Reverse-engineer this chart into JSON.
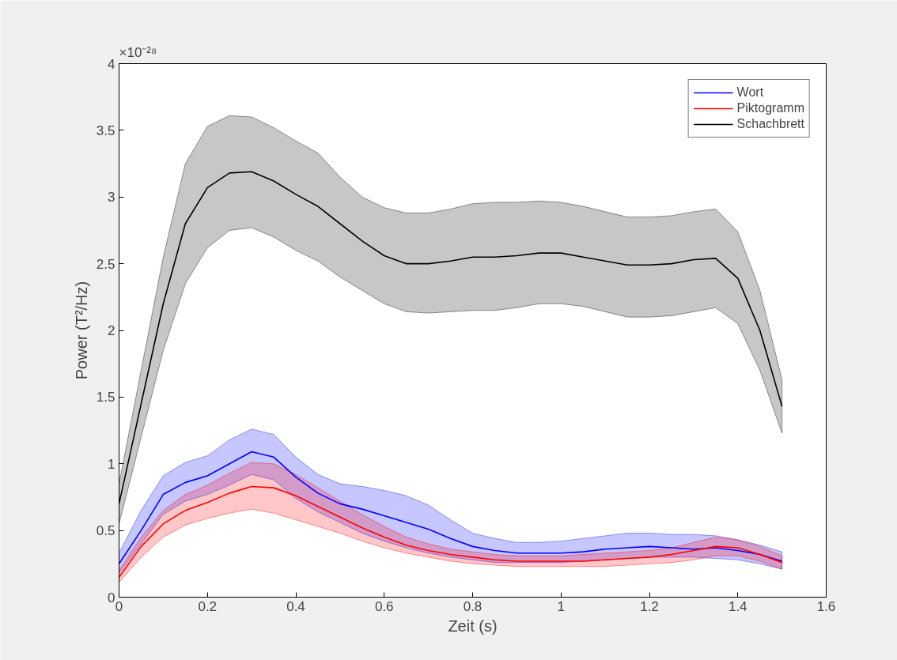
{
  "chart_data": {
    "type": "line",
    "xlabel": "Zeit (s)",
    "ylabel": "Power (T²/Hz)",
    "annotations": [
      "×10⁻²⁸"
    ],
    "x": [
      0,
      0.05,
      0.1,
      0.15,
      0.2,
      0.25,
      0.3,
      0.35,
      0.4,
      0.45,
      0.5,
      0.55,
      0.6,
      0.65,
      0.7,
      0.75,
      0.8,
      0.85,
      0.9,
      0.95,
      1.0,
      1.05,
      1.1,
      1.15,
      1.2,
      1.25,
      1.3,
      1.35,
      1.4,
      1.45,
      1.5
    ],
    "xlim": [
      0,
      1.6
    ],
    "xticks": [
      0,
      0.2,
      0.4,
      0.6,
      0.8,
      1,
      1.2,
      1.4,
      1.6
    ],
    "ylim": [
      0,
      4
    ],
    "yticks": [
      0,
      0.5,
      1,
      1.5,
      2,
      2.5,
      3,
      3.5,
      4
    ],
    "grid": false,
    "legend": "top right",
    "line_style": "solid",
    "marker": "none",
    "series": [
      {
        "name": "Wort",
        "color": "#0000ff",
        "values": [
          0.25,
          0.5,
          0.77,
          0.86,
          0.91,
          1.0,
          1.09,
          1.05,
          0.9,
          0.78,
          0.7,
          0.66,
          0.61,
          0.56,
          0.51,
          0.44,
          0.38,
          0.35,
          0.33,
          0.33,
          0.33,
          0.34,
          0.36,
          0.37,
          0.38,
          0.37,
          0.36,
          0.37,
          0.35,
          0.32,
          0.27
        ],
        "upper": [
          0.33,
          0.65,
          0.91,
          1.01,
          1.06,
          1.18,
          1.26,
          1.22,
          1.05,
          0.92,
          0.85,
          0.83,
          0.8,
          0.76,
          0.69,
          0.58,
          0.48,
          0.44,
          0.41,
          0.41,
          0.42,
          0.44,
          0.46,
          0.48,
          0.48,
          0.47,
          0.47,
          0.46,
          0.43,
          0.39,
          0.34
        ],
        "lower": [
          0.18,
          0.4,
          0.62,
          0.72,
          0.77,
          0.84,
          0.92,
          0.88,
          0.74,
          0.64,
          0.56,
          0.48,
          0.42,
          0.37,
          0.33,
          0.3,
          0.28,
          0.26,
          0.26,
          0.26,
          0.26,
          0.27,
          0.28,
          0.29,
          0.3,
          0.3,
          0.3,
          0.29,
          0.28,
          0.25,
          0.21
        ]
      },
      {
        "name": "Piktogramm",
        "color": "#ff0000",
        "values": [
          0.15,
          0.38,
          0.55,
          0.65,
          0.71,
          0.78,
          0.83,
          0.82,
          0.76,
          0.68,
          0.6,
          0.52,
          0.45,
          0.39,
          0.35,
          0.32,
          0.3,
          0.28,
          0.27,
          0.27,
          0.27,
          0.27,
          0.28,
          0.29,
          0.3,
          0.32,
          0.35,
          0.38,
          0.37,
          0.32,
          0.26
        ],
        "upper": [
          0.2,
          0.45,
          0.65,
          0.77,
          0.84,
          0.93,
          1.01,
          1.0,
          0.92,
          0.82,
          0.72,
          0.62,
          0.53,
          0.45,
          0.4,
          0.36,
          0.34,
          0.32,
          0.31,
          0.31,
          0.31,
          0.32,
          0.33,
          0.34,
          0.35,
          0.37,
          0.41,
          0.45,
          0.43,
          0.38,
          0.31
        ],
        "lower": [
          0.11,
          0.3,
          0.45,
          0.54,
          0.59,
          0.63,
          0.66,
          0.63,
          0.58,
          0.53,
          0.48,
          0.42,
          0.37,
          0.33,
          0.3,
          0.27,
          0.25,
          0.24,
          0.23,
          0.23,
          0.23,
          0.23,
          0.23,
          0.24,
          0.25,
          0.26,
          0.28,
          0.31,
          0.31,
          0.27,
          0.21
        ]
      },
      {
        "name": "Schachbrett",
        "color": "#000000",
        "values": [
          0.7,
          1.45,
          2.2,
          2.8,
          3.07,
          3.18,
          3.19,
          3.12,
          3.02,
          2.93,
          2.8,
          2.67,
          2.56,
          2.5,
          2.5,
          2.52,
          2.55,
          2.55,
          2.56,
          2.58,
          2.58,
          2.55,
          2.52,
          2.49,
          2.49,
          2.5,
          2.53,
          2.54,
          2.39,
          2.0,
          1.43
        ],
        "upper": [
          0.85,
          1.7,
          2.55,
          3.25,
          3.53,
          3.61,
          3.6,
          3.52,
          3.42,
          3.33,
          3.15,
          3.0,
          2.92,
          2.88,
          2.88,
          2.91,
          2.95,
          2.96,
          2.96,
          2.97,
          2.96,
          2.93,
          2.89,
          2.85,
          2.85,
          2.86,
          2.89,
          2.91,
          2.74,
          2.3,
          1.63
        ],
        "lower": [
          0.55,
          1.2,
          1.85,
          2.35,
          2.62,
          2.75,
          2.77,
          2.7,
          2.6,
          2.52,
          2.4,
          2.3,
          2.2,
          2.14,
          2.13,
          2.14,
          2.15,
          2.15,
          2.17,
          2.2,
          2.2,
          2.18,
          2.14,
          2.1,
          2.1,
          2.11,
          2.14,
          2.17,
          2.05,
          1.7,
          1.23
        ]
      }
    ]
  }
}
